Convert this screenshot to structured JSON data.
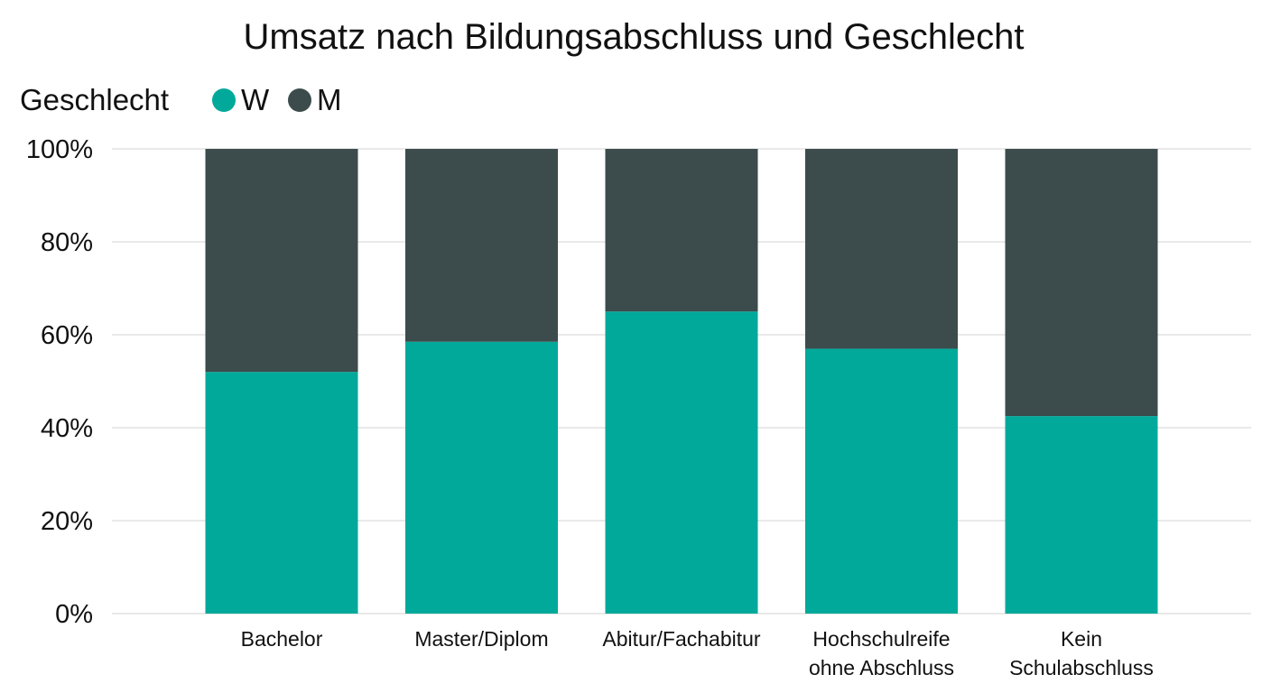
{
  "chart_data": {
    "type": "bar",
    "stacked": "percent",
    "title": "Umsatz nach Bildungsabschluss und Geschlecht",
    "legend": {
      "title": "Geschlecht",
      "placement": "top-left"
    },
    "categories": [
      "Bachelor",
      "Master/Diplom",
      "Abitur/Fachabitur",
      "Hochschulreife ohne Abschluss",
      "Kein Schulabschluss"
    ],
    "series": [
      {
        "name": "W",
        "color": "#00a99a",
        "values": [
          52,
          58.5,
          65,
          57,
          42.5
        ]
      },
      {
        "name": "M",
        "color": "#3c4b4c",
        "values": [
          48,
          41.5,
          35,
          43,
          57.5
        ]
      }
    ],
    "ylim": [
      0,
      100
    ],
    "yticks": [
      "0%",
      "20%",
      "40%",
      "60%",
      "80%",
      "100%"
    ],
    "grid": true
  }
}
